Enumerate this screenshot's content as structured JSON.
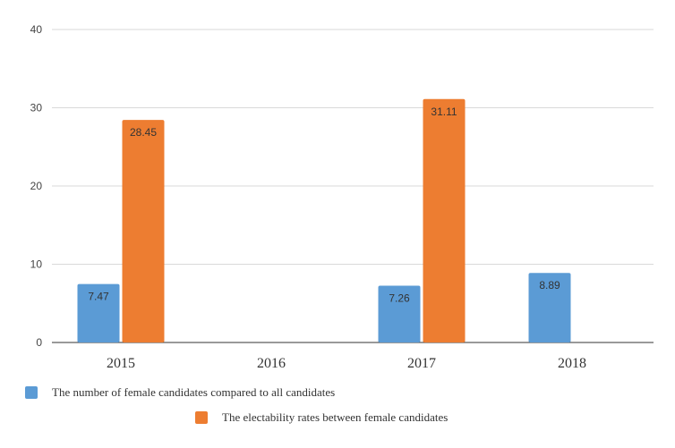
{
  "chart_data": {
    "type": "bar",
    "categories": [
      "2015",
      "2016",
      "2017",
      "2018"
    ],
    "series": [
      {
        "name": "The number of female candidates compared to all candidates",
        "values": [
          7.47,
          null,
          7.26,
          8.89
        ],
        "labels": [
          "7.47",
          "",
          "7.26",
          "8.89"
        ],
        "color": "#5b9bd5"
      },
      {
        "name": "The electability rates between female candidates",
        "values": [
          28.45,
          null,
          31.11,
          null
        ],
        "labels": [
          "28.45",
          "",
          "31.11",
          ""
        ],
        "color": "#ed7d31"
      }
    ],
    "yticks": [
      "0",
      "10",
      "20",
      "30",
      "40"
    ],
    "ylim": [
      0,
      40
    ],
    "grid": true,
    "legend_position": "bottom"
  }
}
